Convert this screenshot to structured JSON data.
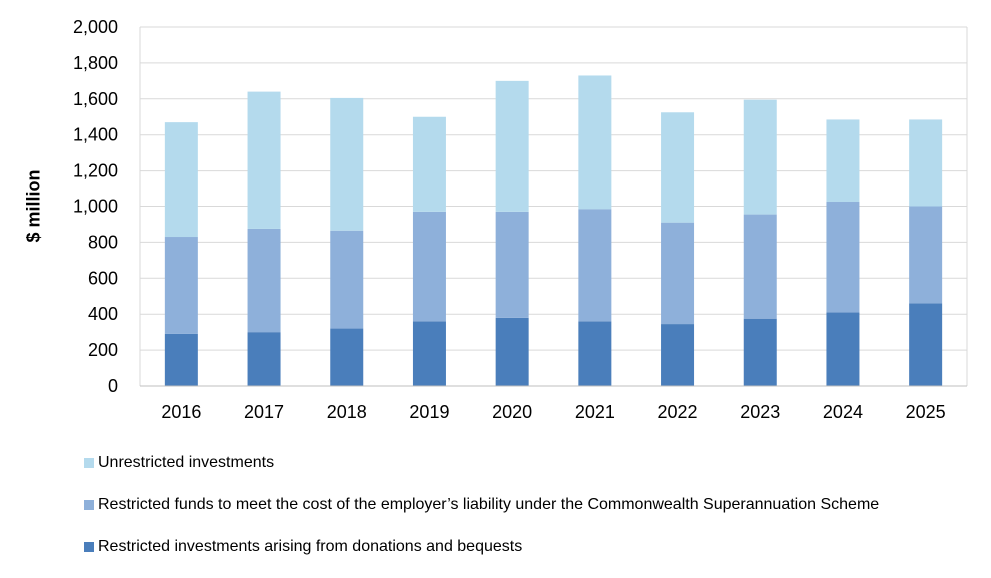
{
  "chart_data": {
    "type": "bar",
    "stacked": true,
    "categories": [
      "2016",
      "2017",
      "2018",
      "2019",
      "2020",
      "2021",
      "2022",
      "2023",
      "2024",
      "2025"
    ],
    "series": [
      {
        "name": "Restricted investments arising from donations and bequests",
        "color": "#4a7ebb",
        "values": [
          290,
          300,
          320,
          360,
          380,
          360,
          345,
          375,
          410,
          460
        ]
      },
      {
        "name": "Restricted funds to meet the cost of the employer’s liability under the Commonwealth Superannuation Scheme",
        "color": "#8eb0da",
        "values": [
          540,
          575,
          545,
          610,
          590,
          625,
          565,
          580,
          615,
          540
        ]
      },
      {
        "name": "Unrestricted investments",
        "color": "#b4daed",
        "values": [
          640,
          765,
          740,
          530,
          730,
          745,
          615,
          640,
          460,
          485
        ]
      }
    ],
    "ylabel": "$ million",
    "xlabel": "",
    "ylim": [
      0,
      2000
    ],
    "yticks": [
      "0",
      "200",
      "400",
      "600",
      "800",
      "1,000",
      "1,200",
      "1,400",
      "1,600",
      "1,800",
      "2,000"
    ],
    "grid": true,
    "legend_position": "bottom"
  },
  "legend": [
    {
      "label": "Unrestricted investments",
      "color": "#b4daed"
    },
    {
      "label": "Restricted funds to meet the cost of the employer’s liability under the Commonwealth Superannuation Scheme",
      "color": "#8eb0da"
    },
    {
      "label": "Restricted investments arising from donations and bequests",
      "color": "#4a7ebb"
    }
  ]
}
